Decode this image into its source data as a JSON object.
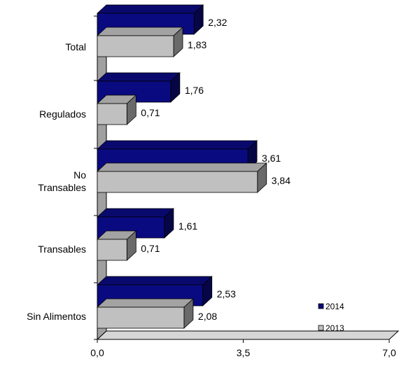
{
  "chart_data": {
    "type": "bar",
    "orientation": "horizontal",
    "style": "3d",
    "categories": [
      "Total",
      "Regulados",
      "No Transables",
      "Transables",
      "Sin Alimentos"
    ],
    "category_lines": [
      [
        "Total"
      ],
      [
        "Regulados"
      ],
      [
        "No",
        "Transables"
      ],
      [
        "Transables"
      ],
      [
        "Sin Alimentos"
      ]
    ],
    "series": [
      {
        "name": "2014",
        "color": "#0a0a80",
        "values": [
          2.32,
          1.76,
          3.61,
          1.61,
          2.53
        ],
        "labels": [
          "2,32",
          "1,76",
          "3,61",
          "1,61",
          "2,53"
        ]
      },
      {
        "name": "2013",
        "color": "#c0c0c0",
        "values": [
          1.83,
          0.71,
          3.84,
          0.71,
          2.08
        ],
        "labels": [
          "1,83",
          "0,71",
          "3,84",
          "0,71",
          "2,08"
        ]
      }
    ],
    "xlim": [
      0,
      7
    ],
    "xticks": [
      0,
      3.5,
      7
    ],
    "xtick_labels": [
      "0,0",
      "3,5",
      "7,0"
    ],
    "legend": "bottom-right",
    "grid": false,
    "title": "",
    "xlabel": "",
    "ylabel": ""
  }
}
